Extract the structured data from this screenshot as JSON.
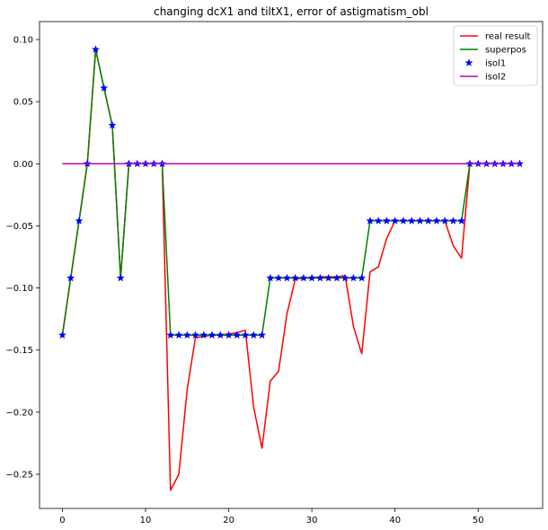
{
  "chart_data": {
    "type": "line",
    "title": "changing dcX1 and tiltX1, error of astigmatism_obl",
    "xlabel": "",
    "ylabel": "",
    "xlim": [
      -2.75,
      57.75
    ],
    "ylim": [
      -0.2775,
      0.1145
    ],
    "xticks": [
      0,
      10,
      20,
      30,
      40,
      50
    ],
    "xtick_labels": [
      "0",
      "10",
      "20",
      "30",
      "40",
      "50"
    ],
    "yticks": [
      0.1,
      0.05,
      0.0,
      -0.05,
      -0.1,
      -0.15,
      -0.2,
      -0.25
    ],
    "ytick_labels": [
      "0.10",
      "0.05",
      "0.00",
      "−0.05",
      "−0.10",
      "−0.15",
      "−0.20",
      "−0.25"
    ],
    "grid": false,
    "legend_position": "top-right",
    "series": [
      {
        "name": "real result",
        "kind": "line",
        "color": "#ff0000",
        "x": [
          0,
          1,
          2,
          3,
          4,
          5,
          6,
          7,
          8,
          9,
          10,
          11,
          12,
          13,
          14,
          15,
          16,
          17,
          18,
          19,
          20,
          21,
          22,
          23,
          24,
          25,
          26,
          27,
          28,
          29,
          30,
          31,
          32,
          33,
          34,
          35,
          36,
          37,
          38,
          39,
          40,
          41,
          42,
          43,
          44,
          45,
          46,
          47,
          48,
          49,
          50,
          51,
          52,
          53,
          54,
          55
        ],
        "y": [
          -0.138,
          -0.092,
          -0.046,
          0.0,
          0.092,
          0.061,
          0.031,
          -0.092,
          0.0,
          0.0,
          0.0,
          0.0,
          0.0,
          -0.263,
          -0.25,
          -0.182,
          -0.14,
          -0.139,
          -0.138,
          -0.138,
          -0.137,
          -0.136,
          -0.134,
          -0.196,
          -0.229,
          -0.175,
          -0.167,
          -0.121,
          -0.093,
          -0.092,
          -0.092,
          -0.091,
          -0.091,
          -0.091,
          -0.09,
          -0.131,
          -0.153,
          -0.087,
          -0.083,
          -0.06,
          -0.046,
          -0.046,
          -0.046,
          -0.046,
          -0.046,
          -0.046,
          -0.046,
          -0.066,
          -0.076,
          0.0,
          0.0,
          0.0,
          0.0,
          0.0,
          0.0,
          0.0
        ]
      },
      {
        "name": "superpos",
        "kind": "line",
        "color": "#008000",
        "x": [
          0,
          1,
          2,
          3,
          4,
          5,
          6,
          7,
          8,
          9,
          10,
          11,
          12,
          13,
          14,
          15,
          16,
          17,
          18,
          19,
          20,
          21,
          22,
          23,
          24,
          25,
          26,
          27,
          28,
          29,
          30,
          31,
          32,
          33,
          34,
          35,
          36,
          37,
          38,
          39,
          40,
          41,
          42,
          43,
          44,
          45,
          46,
          47,
          48,
          49,
          50,
          51,
          52,
          53,
          54,
          55
        ],
        "y": [
          -0.138,
          -0.092,
          -0.046,
          0.0,
          0.092,
          0.061,
          0.031,
          -0.092,
          0.0,
          0.0,
          0.0,
          0.0,
          0.0,
          -0.138,
          -0.138,
          -0.138,
          -0.138,
          -0.138,
          -0.138,
          -0.138,
          -0.138,
          -0.138,
          -0.138,
          -0.138,
          -0.138,
          -0.092,
          -0.092,
          -0.092,
          -0.092,
          -0.092,
          -0.092,
          -0.092,
          -0.092,
          -0.092,
          -0.092,
          -0.092,
          -0.092,
          -0.046,
          -0.046,
          -0.046,
          -0.046,
          -0.046,
          -0.046,
          -0.046,
          -0.046,
          -0.046,
          -0.046,
          -0.046,
          -0.046,
          0.0,
          0.0,
          0.0,
          0.0,
          0.0,
          0.0,
          0.0
        ]
      },
      {
        "name": "isol1",
        "kind": "markers",
        "marker": "star",
        "color": "#0000ff",
        "x": [
          0,
          1,
          2,
          3,
          4,
          5,
          6,
          7,
          8,
          9,
          10,
          11,
          12,
          13,
          14,
          15,
          16,
          17,
          18,
          19,
          20,
          21,
          22,
          23,
          24,
          25,
          26,
          27,
          28,
          29,
          30,
          31,
          32,
          33,
          34,
          35,
          36,
          37,
          38,
          39,
          40,
          41,
          42,
          43,
          44,
          45,
          46,
          47,
          48,
          49,
          50,
          51,
          52,
          53,
          54,
          55
        ],
        "y": [
          -0.138,
          -0.092,
          -0.046,
          0.0,
          0.092,
          0.061,
          0.031,
          -0.092,
          0.0,
          0.0,
          0.0,
          0.0,
          0.0,
          -0.138,
          -0.138,
          -0.138,
          -0.138,
          -0.138,
          -0.138,
          -0.138,
          -0.138,
          -0.138,
          -0.138,
          -0.138,
          -0.138,
          -0.092,
          -0.092,
          -0.092,
          -0.092,
          -0.092,
          -0.092,
          -0.092,
          -0.092,
          -0.092,
          -0.092,
          -0.092,
          -0.092,
          -0.046,
          -0.046,
          -0.046,
          -0.046,
          -0.046,
          -0.046,
          -0.046,
          -0.046,
          -0.046,
          -0.046,
          -0.046,
          -0.046,
          0.0,
          0.0,
          0.0,
          0.0,
          0.0,
          0.0,
          0.0
        ]
      },
      {
        "name": "isol2",
        "kind": "line",
        "color": "#bf00bf",
        "x": [
          0,
          55
        ],
        "y": [
          0.0,
          0.0
        ]
      }
    ]
  }
}
